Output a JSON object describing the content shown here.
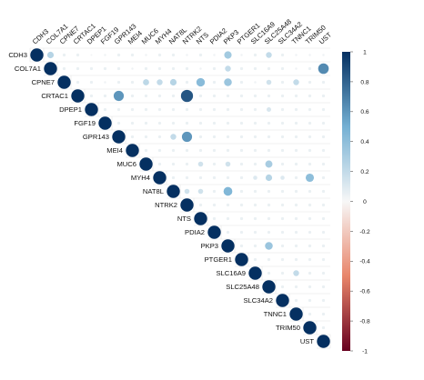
{
  "chart_data": {
    "type": "heatmap",
    "subtype": "correlation-upper-triangle",
    "title": "",
    "xlabel": "",
    "ylabel": "",
    "labels": [
      "CDH3",
      "COL7A1",
      "CPNE7",
      "CRTAC1",
      "DPEP1",
      "FGF19",
      "GPR143",
      "MEI4",
      "MUC6",
      "MYH4",
      "NAT8L",
      "NTRK2",
      "NTS",
      "PDIA2",
      "PKP3",
      "PTGER1",
      "SLC16A9",
      "SLC25A48",
      "SLC34A2",
      "TNNC1",
      "TRIM50",
      "UST"
    ],
    "values": [
      [
        1,
        0.25,
        0.05,
        0.05,
        0.02,
        0.03,
        0.05,
        0.05,
        0.03,
        0.05,
        0.05,
        0.03,
        0.05,
        0.03,
        0.32,
        0.03,
        0.05,
        0.2,
        0.05,
        0.03,
        0.03,
        0.03
      ],
      [
        0.25,
        1,
        0.05,
        0.05,
        0.05,
        0.05,
        0.05,
        0.03,
        0.05,
        0.05,
        0.05,
        0.05,
        0.03,
        0.05,
        0.2,
        0.05,
        0.05,
        0.05,
        0.05,
        0.03,
        0.05,
        0.65
      ],
      [
        0.05,
        0.05,
        1,
        0.05,
        0.05,
        0.03,
        0.05,
        0.05,
        0.22,
        0.2,
        0.25,
        0.05,
        0.42,
        0.05,
        0.35,
        0.05,
        0.03,
        0.15,
        0.05,
        0.2,
        0.05,
        0.05
      ],
      [
        0.05,
        0.05,
        0.05,
        1,
        0.05,
        0.05,
        0.6,
        0.05,
        0.05,
        0.05,
        0.05,
        0.85,
        0.05,
        0.05,
        0.05,
        0.05,
        0.05,
        0.05,
        0.05,
        0.05,
        0.05,
        0.05
      ],
      [
        0.02,
        0.05,
        0.05,
        0.05,
        1,
        0.05,
        0.05,
        0.05,
        0.05,
        0.05,
        0.05,
        0.05,
        0.05,
        0.05,
        0.05,
        0.05,
        0.05,
        0.12,
        0.05,
        0.05,
        0.05,
        0.05
      ],
      [
        0.03,
        0.05,
        0.03,
        0.05,
        0.05,
        1,
        0.05,
        0.05,
        0.05,
        0.05,
        0.05,
        0.05,
        0.05,
        0.05,
        0.05,
        0.05,
        0.05,
        0.05,
        0.05,
        0.05,
        0.05,
        0.05
      ],
      [
        0.05,
        0.05,
        0.05,
        0.6,
        0.05,
        0.05,
        1,
        0.05,
        0.05,
        0.05,
        0.2,
        0.6,
        0.05,
        0.05,
        0.05,
        0.05,
        0.05,
        0.05,
        0.05,
        0.05,
        0.05,
        0.05
      ],
      [
        0.05,
        0.03,
        0.05,
        0.05,
        0.05,
        0.05,
        0.05,
        1,
        0.05,
        0.05,
        0.05,
        0.05,
        0.05,
        0.05,
        0.05,
        0.05,
        0.05,
        0.05,
        0.05,
        0.05,
        0.05,
        0.05
      ],
      [
        0.03,
        0.05,
        0.22,
        0.05,
        0.05,
        0.05,
        0.05,
        0.05,
        1,
        0.05,
        0.05,
        0.05,
        0.15,
        0.05,
        0.15,
        0.05,
        0.05,
        0.3,
        0.05,
        0.05,
        0.05,
        0.05
      ],
      [
        0.05,
        0.05,
        0.2,
        0.05,
        0.05,
        0.05,
        0.05,
        0.05,
        0.05,
        1,
        0.05,
        0.05,
        0.05,
        0.05,
        0.05,
        0.05,
        0.1,
        0.25,
        0.1,
        0.05,
        0.4,
        0.05
      ],
      [
        0.05,
        0.05,
        0.25,
        0.05,
        0.05,
        0.05,
        0.2,
        0.05,
        0.05,
        0.05,
        1,
        0.15,
        0.15,
        0.05,
        0.45,
        0.05,
        0.05,
        0.05,
        0.05,
        0.05,
        0.05,
        0.05
      ],
      [
        0.03,
        0.05,
        0.05,
        0.85,
        0.05,
        0.05,
        0.6,
        0.05,
        0.05,
        0.05,
        0.15,
        1,
        0.05,
        0.05,
        0.05,
        0.05,
        0.05,
        0.05,
        0.05,
        0.05,
        0.05,
        0.05
      ],
      [
        0.05,
        0.03,
        0.42,
        0.05,
        0.05,
        0.05,
        0.05,
        0.05,
        0.15,
        0.05,
        0.15,
        0.05,
        1,
        0.05,
        0.05,
        0.05,
        0.05,
        0.05,
        0.05,
        0.05,
        0.05,
        0.05
      ],
      [
        0.03,
        0.05,
        0.05,
        0.05,
        0.05,
        0.05,
        0.05,
        0.05,
        0.05,
        0.05,
        0.05,
        0.05,
        0.05,
        1,
        0.05,
        0.05,
        0.05,
        0.05,
        0.05,
        0.05,
        0.05,
        0.05
      ],
      [
        0.32,
        0.2,
        0.35,
        0.05,
        0.05,
        0.05,
        0.05,
        0.05,
        0.15,
        0.05,
        0.45,
        0.05,
        0.05,
        0.05,
        1,
        0.05,
        0.05,
        0.35,
        0.05,
        0.05,
        0.05,
        0.05
      ],
      [
        0.03,
        0.05,
        0.05,
        0.05,
        0.05,
        0.05,
        0.05,
        0.05,
        0.05,
        0.05,
        0.05,
        0.05,
        0.05,
        0.05,
        0.05,
        1,
        0.05,
        0.05,
        0.05,
        0.05,
        0.05,
        0.05
      ],
      [
        0.05,
        0.05,
        0.03,
        0.05,
        0.05,
        0.05,
        0.05,
        0.05,
        0.05,
        0.1,
        0.05,
        0.05,
        0.05,
        0.05,
        0.05,
        0.05,
        1,
        0.05,
        0.05,
        0.2,
        0.05,
        0.05
      ],
      [
        0.2,
        0.05,
        0.15,
        0.05,
        0.12,
        0.05,
        0.05,
        0.05,
        0.3,
        0.25,
        0.05,
        0.05,
        0.05,
        0.05,
        0.35,
        0.05,
        0.05,
        1,
        0.05,
        0.05,
        0.05,
        0.05
      ],
      [
        0.05,
        0.05,
        0.05,
        0.05,
        0.05,
        0.05,
        0.05,
        0.05,
        0.05,
        0.1,
        0.05,
        0.05,
        0.05,
        0.05,
        0.05,
        0.05,
        0.05,
        0.05,
        1,
        0.05,
        0.05,
        0.05
      ],
      [
        0.03,
        0.03,
        0.2,
        0.05,
        0.05,
        0.05,
        0.05,
        0.05,
        0.05,
        0.05,
        0.05,
        0.05,
        0.05,
        0.05,
        0.05,
        0.05,
        0.2,
        0.05,
        0.05,
        1,
        0.05,
        0.05
      ],
      [
        0.03,
        0.05,
        0.05,
        0.05,
        0.05,
        0.05,
        0.05,
        0.05,
        0.05,
        0.4,
        0.05,
        0.05,
        0.05,
        0.05,
        0.05,
        0.05,
        0.05,
        0.05,
        0.05,
        0.05,
        1,
        0.05
      ],
      [
        0.03,
        0.65,
        0.05,
        0.05,
        0.05,
        0.05,
        0.05,
        0.05,
        0.05,
        0.05,
        0.05,
        0.05,
        0.05,
        0.05,
        0.05,
        0.05,
        0.05,
        0.05,
        0.05,
        0.05,
        0.05,
        1
      ]
    ],
    "colorbar": {
      "range": [
        -1,
        1
      ],
      "ticks": [
        1,
        0.8,
        0.6,
        0.4,
        0.2,
        0,
        -0.2,
        -0.4,
        -0.6,
        -0.8,
        -1
      ],
      "tick_labels": [
        "1",
        "0.8",
        "0.6",
        "0.4",
        "0.2",
        "0",
        "-0.2",
        "-0.4",
        "-0.6",
        "-0.8",
        "-1"
      ],
      "colors": {
        "neg_strong": "#67001f",
        "neg_mid": "#e8856a",
        "zero": "#f7f7f7",
        "pos_mid": "#74b0d3",
        "pos_strong": "#053061"
      }
    },
    "grid": true,
    "legend": "right"
  }
}
